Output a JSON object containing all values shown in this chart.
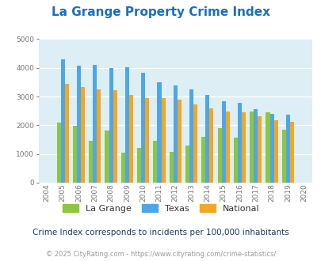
{
  "title": "La Grange Property Crime Index",
  "years": [
    2004,
    2005,
    2006,
    2007,
    2008,
    2009,
    2010,
    2011,
    2012,
    2013,
    2014,
    2015,
    2016,
    2017,
    2018,
    2019,
    2020
  ],
  "la_grange": [
    0,
    2100,
    1970,
    1450,
    1830,
    1050,
    1220,
    1470,
    1080,
    1290,
    1590,
    1900,
    1560,
    2470,
    2450,
    1840,
    0
  ],
  "texas": [
    0,
    4310,
    4080,
    4100,
    4000,
    4030,
    3820,
    3490,
    3380,
    3260,
    3050,
    2840,
    2770,
    2560,
    2390,
    2380,
    0
  ],
  "national": [
    0,
    3450,
    3340,
    3250,
    3220,
    3050,
    2950,
    2950,
    2890,
    2720,
    2600,
    2490,
    2450,
    2320,
    2180,
    2130,
    0
  ],
  "la_grange_color": "#8dc63f",
  "texas_color": "#4da6e8",
  "national_color": "#f5a623",
  "bg_color": "#ddeef5",
  "ylim": [
    0,
    5000
  ],
  "yticks": [
    0,
    1000,
    2000,
    3000,
    4000,
    5000
  ],
  "subtitle": "Crime Index corresponds to incidents per 100,000 inhabitants",
  "footer": "© 2025 CityRating.com - https://www.cityrating.com/crime-statistics/",
  "title_color": "#1a6fba",
  "subtitle_color": "#1a3a6b",
  "footer_color": "#999999"
}
